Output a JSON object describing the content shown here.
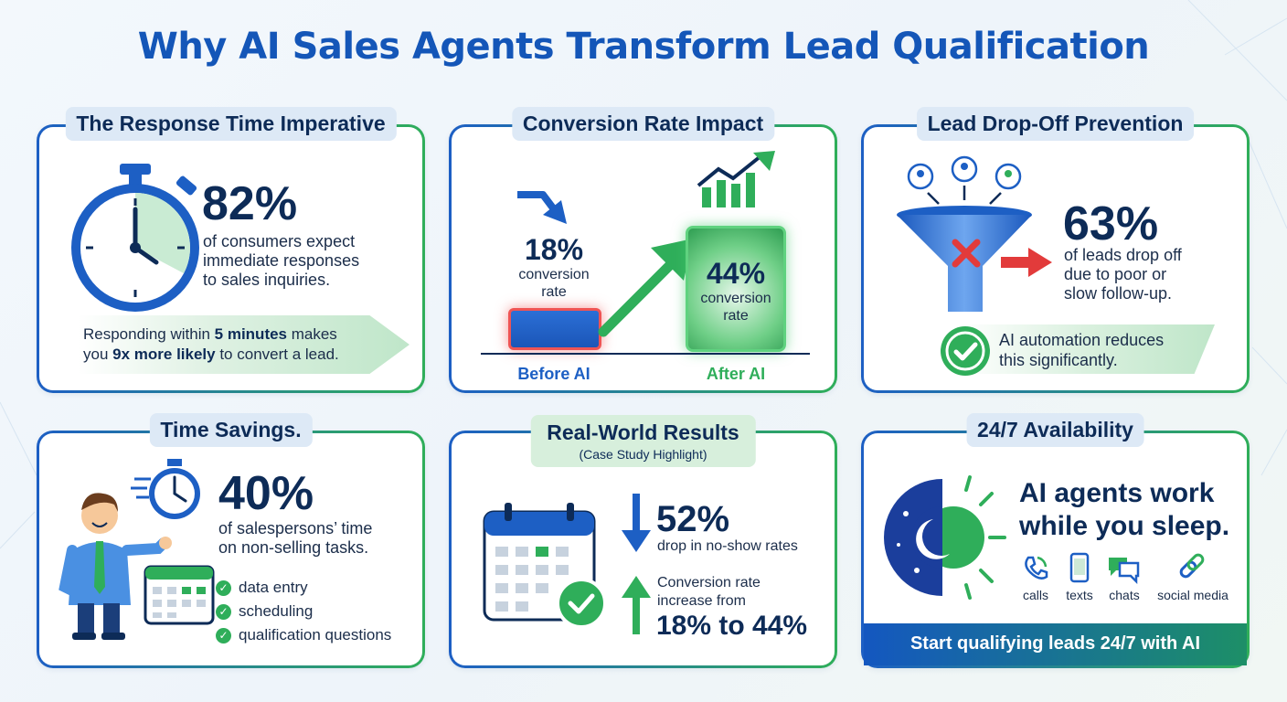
{
  "title": "Why AI Sales Agents Transform Lead Qualification",
  "response_time": {
    "heading": "The Response Time Imperative",
    "stat": "82%",
    "desc_lines": [
      "of consumers expect",
      "immediate responses",
      "to sales inquiries."
    ],
    "banner_part1": "Responding within ",
    "banner_bold1": "5 minutes",
    "banner_part2": " makes",
    "banner_part3": "you ",
    "banner_bold2": "9x more likely",
    "banner_part4": " to convert a lead."
  },
  "conversion": {
    "heading": "Conversion Rate Impact",
    "before_value": "18%",
    "before_desc": [
      "conversion",
      "rate"
    ],
    "after_value": "44%",
    "after_desc": [
      "conversion",
      "rate"
    ],
    "before_label": "Before AI",
    "after_label": "After AI"
  },
  "dropoff": {
    "heading": "Lead Drop-Off Prevention",
    "stat": "63%",
    "desc_lines": [
      "of leads drop off",
      "due to poor or",
      "slow follow-up."
    ],
    "banner_lines": [
      "AI automation reduces",
      "this significantly."
    ]
  },
  "time_savings": {
    "heading": "Time Savings.",
    "stat": "40%",
    "desc_lines": [
      "of salespersons’ time",
      "on non-selling tasks."
    ],
    "tasks": [
      "data entry",
      "scheduling",
      "qualification questions"
    ]
  },
  "results": {
    "heading": "Real-World Results",
    "subheading": "(Case Study Highlight)",
    "stat1": "52%",
    "stat1_desc": "drop in no-show rates",
    "stat2_desc": [
      "Conversion rate",
      "increase from"
    ],
    "stat2": "18% to 44%"
  },
  "availability": {
    "heading": "24/7 Availability",
    "headline": [
      "AI agents work",
      "while you sleep."
    ],
    "channels": [
      "calls",
      "texts",
      "chats",
      "social media"
    ],
    "cta": "Start qualifying leads 24/7 with AI"
  },
  "colors": {
    "blue": "#1456b8",
    "green": "#2fae5a",
    "navy": "#0d2b57",
    "red": "#e23b3b"
  }
}
